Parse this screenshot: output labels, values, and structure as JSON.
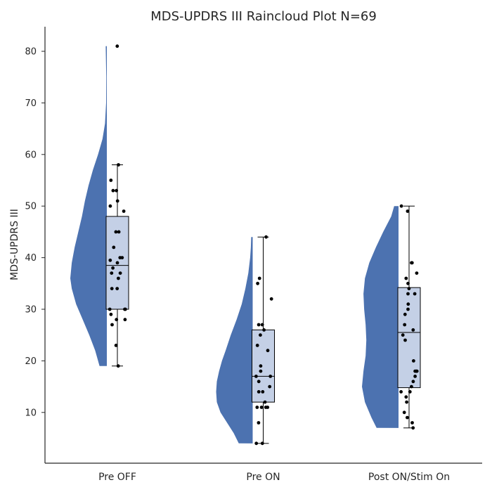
{
  "chart_data": {
    "type": "raincloud",
    "title": "MDS-UPDRS III Raincloud Plot  N=69",
    "xlabel": "",
    "ylabel": "MDS-UPDRS III",
    "categories": [
      "Pre OFF",
      "Pre ON",
      "Post ON/Stim On"
    ],
    "yticks": [
      10,
      20,
      30,
      40,
      50,
      60,
      70,
      80
    ],
    "ylim": [
      0,
      85
    ],
    "grid": false,
    "colors": {
      "violin": "#4c72b0",
      "box_fill": "#c4d0e6",
      "box_edge": "#000000",
      "point": "#000000"
    },
    "boxes": [
      {
        "category": "Pre OFF",
        "min": 19,
        "q1": 30,
        "median": 38.5,
        "q3": 48,
        "max": 58
      },
      {
        "category": "Pre ON",
        "min": 4,
        "q1": 12,
        "median": 17,
        "q3": 26,
        "max": 44
      },
      {
        "category": "Post ON/Stim On",
        "min": 7,
        "q1": 14.8,
        "median": 25.5,
        "q3": 34.2,
        "max": 50
      }
    ],
    "violins": [
      {
        "category": "Pre OFF",
        "range": [
          19,
          81
        ],
        "density": [
          [
            19,
            0.2
          ],
          [
            22,
            0.32
          ],
          [
            25,
            0.48
          ],
          [
            28,
            0.66
          ],
          [
            31,
            0.84
          ],
          [
            34,
            0.96
          ],
          [
            36,
            1.0
          ],
          [
            39,
            0.96
          ],
          [
            42,
            0.88
          ],
          [
            45,
            0.78
          ],
          [
            48,
            0.68
          ],
          [
            51,
            0.6
          ],
          [
            54,
            0.5
          ],
          [
            57,
            0.38
          ],
          [
            60,
            0.24
          ],
          [
            63,
            0.12
          ],
          [
            66,
            0.05
          ],
          [
            70,
            0.02
          ],
          [
            75,
            0.015
          ],
          [
            81,
            0.03
          ]
        ]
      },
      {
        "category": "Pre ON",
        "range": [
          4,
          44
        ],
        "density": [
          [
            4,
            0.38
          ],
          [
            6,
            0.52
          ],
          [
            8,
            0.7
          ],
          [
            10,
            0.88
          ],
          [
            12,
            0.98
          ],
          [
            14,
            1.0
          ],
          [
            16,
            0.98
          ],
          [
            18,
            0.92
          ],
          [
            20,
            0.84
          ],
          [
            22,
            0.74
          ],
          [
            25,
            0.6
          ],
          [
            28,
            0.44
          ],
          [
            31,
            0.3
          ],
          [
            34,
            0.2
          ],
          [
            37,
            0.12
          ],
          [
            40,
            0.07
          ],
          [
            42,
            0.05
          ],
          [
            44,
            0.04
          ]
        ]
      },
      {
        "category": "Post ON/Stim On",
        "range": [
          7,
          50
        ],
        "density": [
          [
            7,
            0.6
          ],
          [
            9,
            0.74
          ],
          [
            12,
            0.92
          ],
          [
            15,
            1.0
          ],
          [
            18,
            0.96
          ],
          [
            21,
            0.9
          ],
          [
            24,
            0.88
          ],
          [
            27,
            0.9
          ],
          [
            30,
            0.94
          ],
          [
            33,
            0.96
          ],
          [
            36,
            0.92
          ],
          [
            39,
            0.8
          ],
          [
            42,
            0.62
          ],
          [
            45,
            0.42
          ],
          [
            48,
            0.2
          ],
          [
            50,
            0.12
          ]
        ]
      }
    ],
    "points": [
      {
        "category": "Pre OFF",
        "values": [
          81,
          58,
          55,
          53,
          53,
          51,
          50,
          49,
          45,
          45,
          42,
          40,
          40,
          39.5,
          39,
          38,
          37,
          37,
          36,
          34,
          34,
          30,
          30,
          30,
          29,
          28,
          28,
          27,
          23,
          19
        ]
      },
      {
        "category": "Pre ON",
        "values": [
          44,
          36,
          35,
          32,
          27,
          27,
          26,
          25,
          23,
          22,
          19,
          18,
          17,
          17,
          16,
          15,
          14,
          14,
          12,
          11,
          11,
          11,
          11,
          8,
          4,
          4
        ]
      },
      {
        "category": "Post ON/Stim On",
        "values": [
          50,
          49,
          39,
          39,
          37,
          36,
          35,
          34,
          33,
          33,
          31,
          30,
          29,
          27,
          26,
          25,
          24,
          20,
          18,
          18,
          18,
          17,
          16,
          15,
          14,
          14,
          13,
          12,
          10,
          9,
          8,
          7
        ]
      }
    ]
  }
}
